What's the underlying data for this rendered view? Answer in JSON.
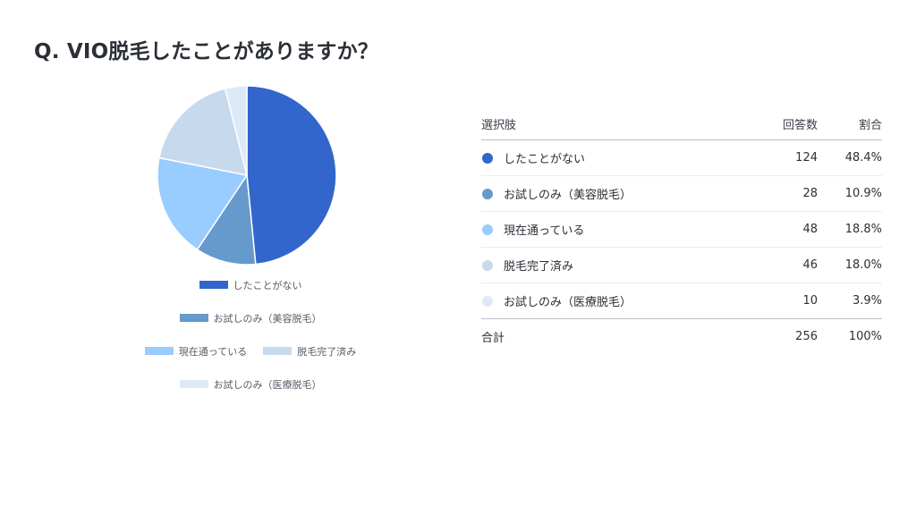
{
  "title": "Q. VIO脱毛したことがありますか？",
  "chart_data": {
    "type": "pie",
    "categories": [
      "したことがない",
      "お試しのみ（美容脱毛）",
      "現在通っている",
      "脱毛完了済み",
      "お試しのみ（医療脱毛）"
    ],
    "values": [
      124,
      28,
      48,
      46,
      10
    ],
    "colors": [
      "#3366cc",
      "#6699cc",
      "#99ccff",
      "#c7d9ed",
      "#dde9f7"
    ],
    "legend_placement": "bottom"
  },
  "table": {
    "header": {
      "label": "選択肢",
      "count": "回答数",
      "ratio": "割合"
    },
    "rows": [
      {
        "label": "したことがない",
        "count": "124",
        "ratio": "48.4%"
      },
      {
        "label": "お試しのみ（美容脱毛）",
        "count": "28",
        "ratio": "10.9%"
      },
      {
        "label": "現在通っている",
        "count": "48",
        "ratio": "18.8%"
      },
      {
        "label": "脱毛完了済み",
        "count": "46",
        "ratio": "18.0%"
      },
      {
        "label": "お試しのみ（医療脱毛）",
        "count": "10",
        "ratio": "3.9%"
      }
    ],
    "total": {
      "label": "合計",
      "count": "256",
      "ratio": "100%"
    }
  }
}
